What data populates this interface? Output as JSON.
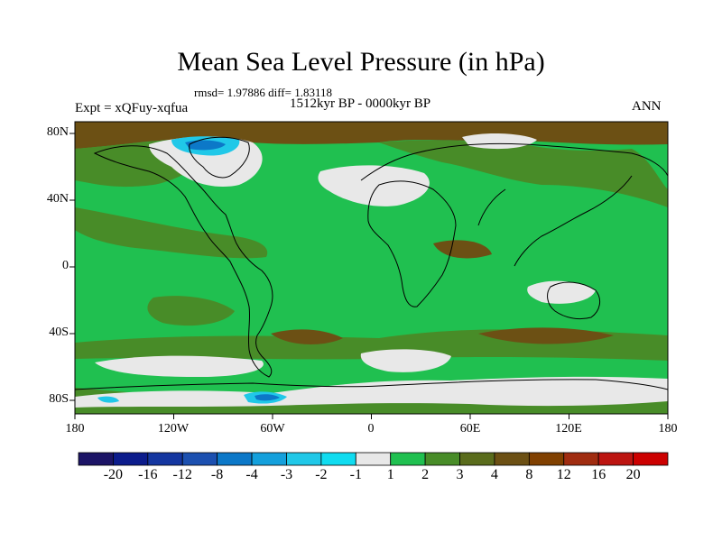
{
  "title": "Mean Sea Level Pressure (in hPa)",
  "stats": "rmsd= 1.97886 diff= 1.83118",
  "period": "1512kyr BP - 0000kyr BP",
  "experiment": "Expt = xQFuy-xqfua",
  "season": "ANN",
  "lat_labels": [
    "80N",
    "40N",
    "0",
    "40S",
    "80S"
  ],
  "lon_labels": [
    "180",
    "120W",
    "60W",
    "0",
    "60E",
    "120E",
    "180"
  ],
  "colorbar": {
    "colors": [
      "#1c1466",
      "#0c1c8c",
      "#1436a0",
      "#1c50b0",
      "#0c78c8",
      "#14a0dc",
      "#20c8e8",
      "#10dcf0",
      "#e8e8e8",
      "#20c050",
      "#488c28",
      "#5a6c1c",
      "#6c5014",
      "#804000",
      "#a02c10",
      "#bc1410",
      "#cc0000"
    ],
    "labels": [
      "-20",
      "-16",
      "-12",
      "-8",
      "-4",
      "-3",
      "-2",
      "-1",
      "1",
      "2",
      "3",
      "4",
      "8",
      "12",
      "16",
      "20"
    ]
  },
  "colors": {
    "green": "#20c050",
    "olive": "#488c28",
    "brown": "#6c5014",
    "near_zero": "#e8e8e8",
    "light_blue": "#20c8e8",
    "blue": "#0c78c8"
  }
}
